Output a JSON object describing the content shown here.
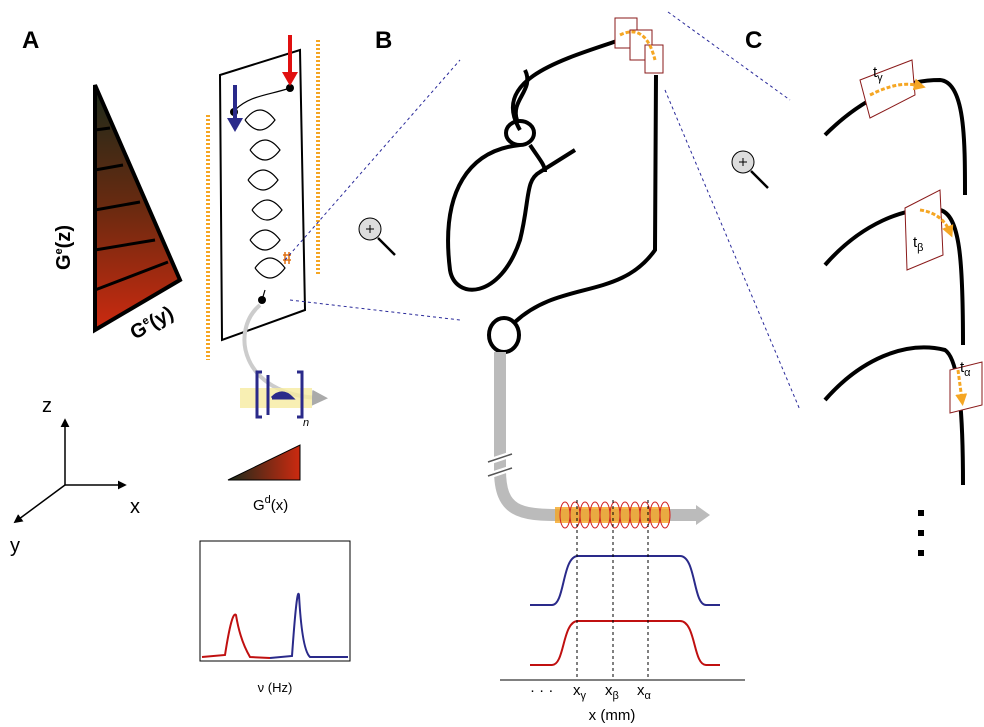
{
  "panel_labels": [
    "A",
    "B",
    "C"
  ],
  "axes_3d": {
    "z": "z",
    "x": "x",
    "y": "y"
  },
  "gradients": [
    {
      "symbol": "G",
      "sup": "e",
      "arg": "(z)"
    },
    {
      "symbol": "G",
      "sup": "e",
      "arg": "(y)"
    },
    {
      "symbol": "G",
      "sup": "d",
      "arg": "(x)"
    }
  ],
  "pulse_repeat": "n",
  "spectrum_axis": "ν (Hz)",
  "position_axis": "x (mm)",
  "positions": [
    {
      "symbol": "x",
      "sub": "γ"
    },
    {
      "symbol": "x",
      "sub": "β"
    },
    {
      "symbol": "x",
      "sub": "α"
    }
  ],
  "times": [
    {
      "symbol": "t",
      "sub": "γ"
    },
    {
      "symbol": "t",
      "sub": "β"
    },
    {
      "symbol": "t",
      "sub": "α"
    }
  ],
  "ellipsis": "· · ·"
}
